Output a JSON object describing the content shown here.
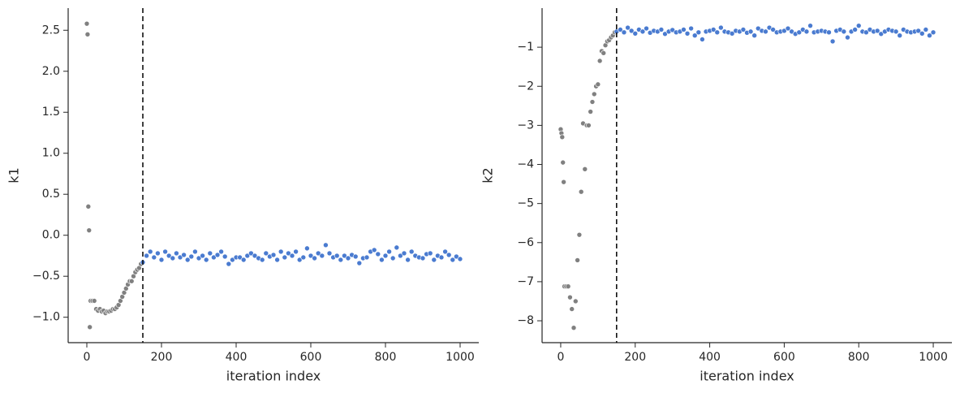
{
  "chart_data": [
    {
      "type": "scatter",
      "xlabel": "iteration index",
      "ylabel": "k1",
      "xlim": [
        -50,
        1050
      ],
      "ylim": [
        -1.31,
        2.77
      ],
      "xticks": [
        0,
        200,
        400,
        600,
        800,
        1000
      ],
      "yticks": [
        {
          "value": -1,
          "label": "−1.0"
        },
        {
          "value": -0.5,
          "label": "−0.5"
        },
        {
          "value": 0,
          "label": "0.0"
        },
        0.5,
        {
          "value": 1,
          "label": "1.0"
        },
        1.5,
        {
          "value": 2,
          "label": "2.0"
        },
        2.5
      ],
      "vline": 150,
      "series": [
        {
          "color": "#808080",
          "x": [
            0,
            2,
            4,
            6,
            8,
            10,
            15,
            20,
            25,
            30,
            35,
            40,
            45,
            50,
            55,
            60,
            65,
            70,
            75,
            80,
            85,
            90,
            95,
            100,
            105,
            110,
            115,
            120,
            125,
            130,
            135,
            140,
            145
          ],
          "values": [
            2.58,
            2.45,
            0.35,
            0.06,
            -1.12,
            -0.8,
            -0.8,
            -0.8,
            -0.9,
            -0.92,
            -0.9,
            -0.93,
            -0.92,
            -0.95,
            -0.93,
            -0.93,
            -0.92,
            -0.9,
            -0.9,
            -0.88,
            -0.85,
            -0.8,
            -0.75,
            -0.7,
            -0.65,
            -0.6,
            -0.56,
            -0.56,
            -0.5,
            -0.45,
            -0.42,
            -0.4,
            -0.35
          ]
        },
        {
          "color": "#4a7bd0",
          "x": [
            150,
            160,
            170,
            180,
            190,
            200,
            210,
            220,
            230,
            240,
            250,
            260,
            270,
            280,
            290,
            300,
            310,
            320,
            330,
            340,
            350,
            360,
            370,
            380,
            390,
            400,
            410,
            420,
            430,
            440,
            450,
            460,
            470,
            480,
            490,
            500,
            510,
            520,
            530,
            540,
            550,
            560,
            570,
            580,
            590,
            600,
            610,
            620,
            630,
            640,
            650,
            660,
            670,
            680,
            690,
            700,
            710,
            720,
            730,
            740,
            750,
            760,
            770,
            780,
            790,
            800,
            810,
            820,
            830,
            840,
            850,
            860,
            870,
            880,
            890,
            900,
            910,
            920,
            930,
            940,
            950,
            960,
            970,
            980,
            990,
            1000
          ],
          "values": [
            -0.33,
            -0.25,
            -0.2,
            -0.27,
            -0.22,
            -0.3,
            -0.2,
            -0.25,
            -0.28,
            -0.22,
            -0.27,
            -0.24,
            -0.3,
            -0.26,
            -0.2,
            -0.28,
            -0.25,
            -0.3,
            -0.22,
            -0.27,
            -0.24,
            -0.2,
            -0.26,
            -0.35,
            -0.3,
            -0.27,
            -0.27,
            -0.3,
            -0.25,
            -0.22,
            -0.25,
            -0.28,
            -0.3,
            -0.22,
            -0.26,
            -0.24,
            -0.3,
            -0.2,
            -0.27,
            -0.22,
            -0.25,
            -0.2,
            -0.3,
            -0.27,
            -0.16,
            -0.25,
            -0.28,
            -0.22,
            -0.25,
            -0.12,
            -0.22,
            -0.27,
            -0.25,
            -0.3,
            -0.25,
            -0.28,
            -0.24,
            -0.26,
            -0.34,
            -0.28,
            -0.27,
            -0.2,
            -0.18,
            -0.23,
            -0.3,
            -0.25,
            -0.2,
            -0.28,
            -0.15,
            -0.25,
            -0.22,
            -0.3,
            -0.2,
            -0.25,
            -0.27,
            -0.28,
            -0.23,
            -0.22,
            -0.3,
            -0.25,
            -0.27,
            -0.2,
            -0.24,
            -0.3,
            -0.26,
            -0.29
          ]
        }
      ]
    },
    {
      "type": "scatter",
      "xlabel": "iteration index",
      "ylabel": "k2",
      "xlim": [
        -50,
        1050
      ],
      "ylim": [
        -8.56,
        0
      ],
      "xticks": [
        0,
        200,
        400,
        600,
        800,
        1000
      ],
      "yticks": [
        {
          "value": -8,
          "label": "−8"
        },
        {
          "value": -7,
          "label": "−7"
        },
        {
          "value": -6,
          "label": "−6"
        },
        {
          "value": -5,
          "label": "−5"
        },
        {
          "value": -4,
          "label": "−4"
        },
        {
          "value": -3,
          "label": "−3"
        },
        {
          "value": -2,
          "label": "−2"
        },
        {
          "value": -1,
          "label": "−1"
        }
      ],
      "vline": 150,
      "series": [
        {
          "color": "#808080",
          "x": [
            0,
            2,
            4,
            6,
            8,
            10,
            15,
            20,
            25,
            30,
            35,
            40,
            45,
            50,
            55,
            60,
            65,
            70,
            75,
            80,
            85,
            90,
            95,
            100,
            105,
            110,
            115,
            120,
            125,
            130,
            135,
            140,
            145
          ],
          "values": [
            -3.1,
            -3.2,
            -3.3,
            -3.95,
            -4.45,
            -7.12,
            -7.12,
            -7.12,
            -7.4,
            -7.7,
            -8.18,
            -7.5,
            -6.45,
            -5.8,
            -4.7,
            -2.95,
            -4.12,
            -3.0,
            -3.0,
            -2.65,
            -2.4,
            -2.2,
            -2.0,
            -1.95,
            -1.35,
            -1.1,
            -1.15,
            -0.95,
            -0.85,
            -0.82,
            -0.75,
            -0.7,
            -0.62
          ]
        },
        {
          "color": "#4a7bd0",
          "x": [
            150,
            160,
            170,
            180,
            190,
            200,
            210,
            220,
            230,
            240,
            250,
            260,
            270,
            280,
            290,
            300,
            310,
            320,
            330,
            340,
            350,
            360,
            370,
            380,
            390,
            400,
            410,
            420,
            430,
            440,
            450,
            460,
            470,
            480,
            490,
            500,
            510,
            520,
            530,
            540,
            550,
            560,
            570,
            580,
            590,
            600,
            610,
            620,
            630,
            640,
            650,
            660,
            670,
            680,
            690,
            700,
            710,
            720,
            730,
            740,
            750,
            760,
            770,
            780,
            790,
            800,
            810,
            820,
            830,
            840,
            850,
            860,
            870,
            880,
            890,
            900,
            910,
            920,
            930,
            940,
            950,
            960,
            970,
            980,
            990,
            1000
          ],
          "values": [
            -0.6,
            -0.55,
            -0.62,
            -0.5,
            -0.58,
            -0.65,
            -0.55,
            -0.6,
            -0.52,
            -0.63,
            -0.58,
            -0.6,
            -0.55,
            -0.66,
            -0.6,
            -0.56,
            -0.62,
            -0.6,
            -0.55,
            -0.65,
            -0.52,
            -0.7,
            -0.62,
            -0.8,
            -0.6,
            -0.58,
            -0.55,
            -0.62,
            -0.5,
            -0.6,
            -0.62,
            -0.65,
            -0.58,
            -0.6,
            -0.55,
            -0.63,
            -0.6,
            -0.7,
            -0.52,
            -0.58,
            -0.6,
            -0.5,
            -0.55,
            -0.62,
            -0.6,
            -0.58,
            -0.52,
            -0.6,
            -0.66,
            -0.62,
            -0.55,
            -0.6,
            -0.45,
            -0.62,
            -0.6,
            -0.58,
            -0.6,
            -0.62,
            -0.85,
            -0.58,
            -0.55,
            -0.6,
            -0.75,
            -0.6,
            -0.55,
            -0.45,
            -0.6,
            -0.62,
            -0.55,
            -0.6,
            -0.58,
            -0.66,
            -0.6,
            -0.55,
            -0.58,
            -0.6,
            -0.7,
            -0.55,
            -0.6,
            -0.62,
            -0.6,
            -0.58,
            -0.65,
            -0.55,
            -0.7,
            -0.62
          ]
        }
      ]
    }
  ]
}
